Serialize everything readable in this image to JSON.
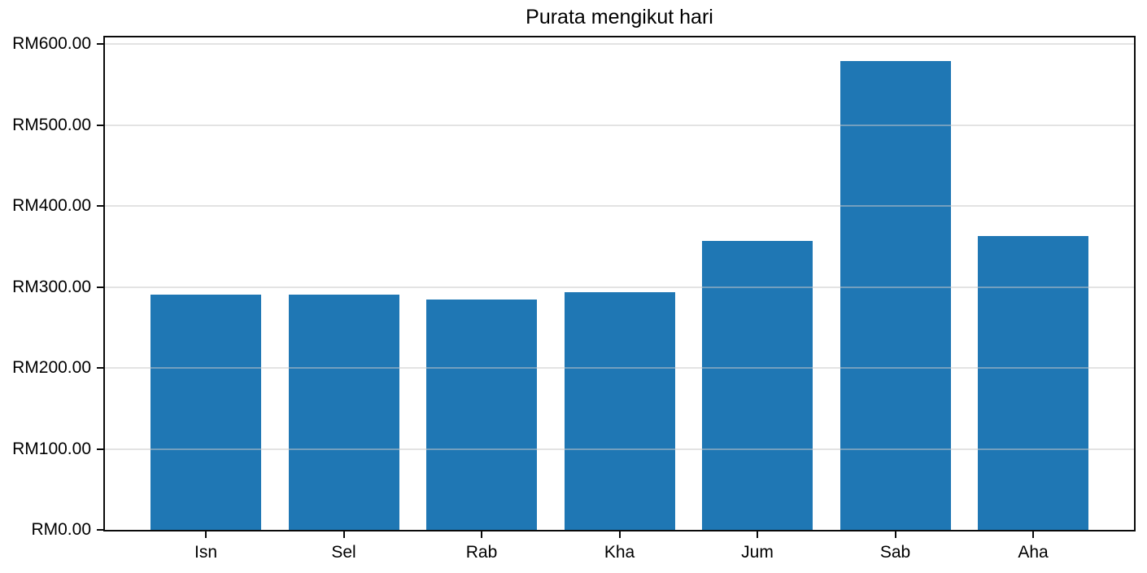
{
  "chart_data": {
    "type": "bar",
    "title": "Purata mengikut hari",
    "categories": [
      "Isn",
      "Sel",
      "Rab",
      "Kha",
      "Jum",
      "Sab",
      "Aha"
    ],
    "values": [
      290,
      290,
      284,
      293,
      357,
      579,
      363
    ],
    "currency_prefix": "RM",
    "xlabel": "",
    "ylabel": "",
    "ylim": [
      0,
      608
    ],
    "y_ticks": [
      {
        "value": 0,
        "label": "RM0.00"
      },
      {
        "value": 100,
        "label": "RM100.00"
      },
      {
        "value": 200,
        "label": "RM200.00"
      },
      {
        "value": 300,
        "label": "RM300.00"
      },
      {
        "value": 400,
        "label": "RM400.00"
      },
      {
        "value": 500,
        "label": "RM500.00"
      },
      {
        "value": 600,
        "label": "RM600.00"
      }
    ],
    "grid": "horizontal",
    "legend": "none",
    "colors": {
      "bar": "#1f77b4",
      "gridline": "#c8c8c8",
      "gridline_opacity": 0.5,
      "spine": "#0a0a0a",
      "text": "#000000",
      "background": "#ffffff"
    }
  }
}
